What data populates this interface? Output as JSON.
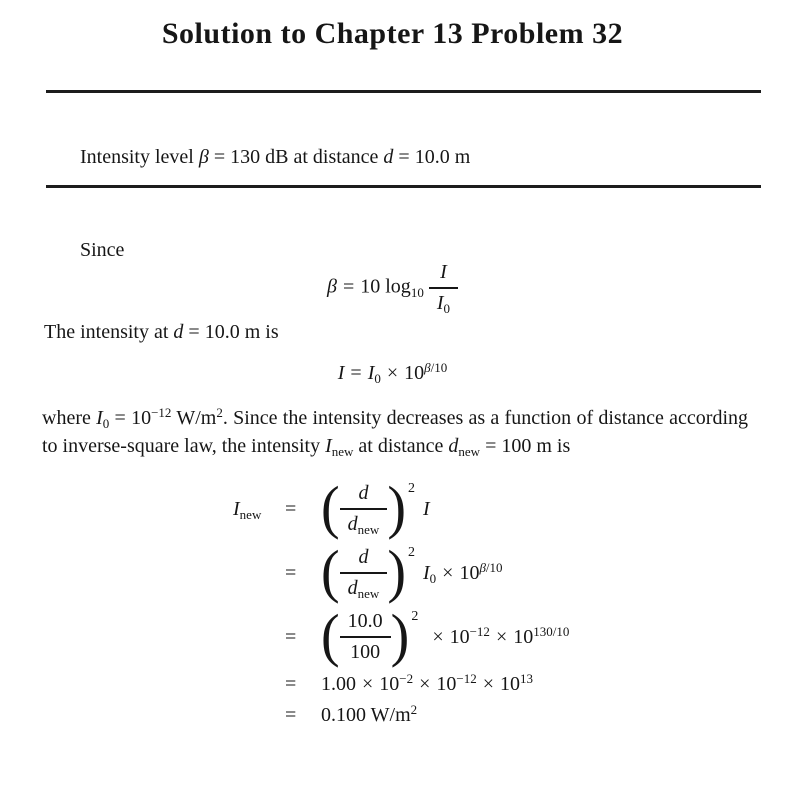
{
  "title": "Solution to Chapter 13 Problem 32",
  "given": {
    "t1": "Intensity level ",
    "beta": "β",
    "t2": " = 130 dB at distance ",
    "d": "d",
    "t3": " = 10.0 m"
  },
  "since_label": "Since",
  "eq_beta": {
    "lhs": "β",
    "eq": "=",
    "prefix": "10 log",
    "log_base": "10",
    "num": "I",
    "den_base": "I",
    "den_sub": "0"
  },
  "intensity_line": {
    "t1": "The intensity at ",
    "d": "d",
    "t2": " = 10.0 m is"
  },
  "eq_intensity": {
    "lhs": "I",
    "eq": "=",
    "rhs_base": "I",
    "rhs_sub": "0",
    "times": "×",
    "pow_base": "10",
    "exp_var": "β",
    "exp_rest": "/10"
  },
  "paragraph": {
    "t1": "where ",
    "i_base": "I",
    "i_sub": "0",
    "t2": " = 10",
    "exp1": "−12",
    "t3": " W/m",
    "exp2": "2",
    "t4": ". Since the intensity decreases as a function of distance according to inverse-square law, the intensity ",
    "inew_base": "I",
    "inew_sub": "new",
    "t5": " at distance ",
    "dnew_base": "d",
    "dnew_sub": "new",
    "t6": " = 100 m is"
  },
  "derivation": {
    "lhs_base": "I",
    "lhs_sub": "new",
    "eq": "=",
    "r1": {
      "num": "d",
      "den_base": "d",
      "den_sub": "new",
      "power": "2",
      "tail": "I"
    },
    "r2": {
      "num": "d",
      "den_base": "d",
      "den_sub": "new",
      "power": "2",
      "i_base": "I",
      "i_sub": "0",
      "times": "×",
      "ten": "10",
      "exp_var": "β",
      "exp_rest": "/10"
    },
    "r3": {
      "num": "10.0",
      "den": "100",
      "power": "2",
      "times1": "×",
      "b1": "10",
      "e1": "−12",
      "times2": "×",
      "b2": "10",
      "e2": "130/10"
    },
    "r4": {
      "c1": "1.00",
      "times1": "×",
      "b1": "10",
      "e1": "−2",
      "times2": "×",
      "b2": "10",
      "e2": "−12",
      "times3": "×",
      "b3": "10",
      "e3": "13"
    },
    "r5": {
      "value": "0.100 W/m",
      "exp": "2"
    }
  },
  "parens": {
    "open": "(",
    "close": ")"
  }
}
